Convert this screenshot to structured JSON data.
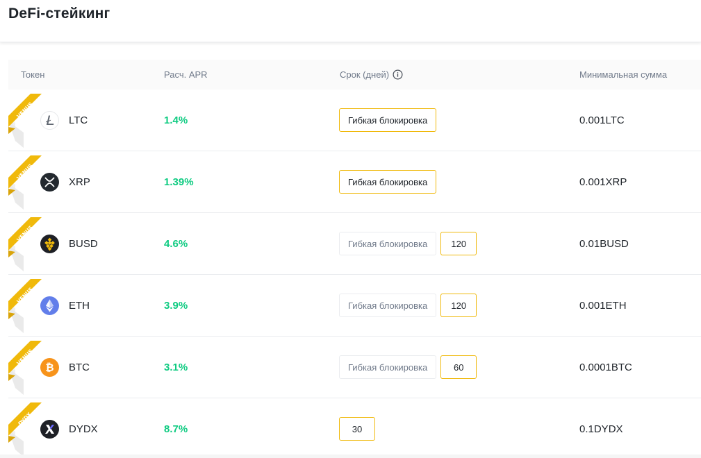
{
  "page": {
    "title": "DeFi-стейкинг"
  },
  "colors": {
    "accent": "#f0b90b",
    "apr_green": "#0ecb81",
    "muted": "#707a8a"
  },
  "table": {
    "headers": {
      "token": "Токен",
      "apr": "Расч. APR",
      "term": "Срок (дней)",
      "min_amount": "Минимальная сумма"
    },
    "rows": [
      {
        "ribbon": "VENUS",
        "icon": "litecoin-icon",
        "symbol": "LTC",
        "apr": "1.4%",
        "flexible": "Гибкая блокировка",
        "flexible_active": true,
        "days": [],
        "min_amount": "0.001LTC"
      },
      {
        "ribbon": "VENUS",
        "icon": "xrp-icon",
        "symbol": "XRP",
        "apr": "1.39%",
        "flexible": "Гибкая блокировка",
        "flexible_active": true,
        "days": [],
        "min_amount": "0.001XRP"
      },
      {
        "ribbon": "VENUS",
        "icon": "busd-icon",
        "symbol": "BUSD",
        "apr": "4.6%",
        "flexible": "Гибкая блокировка",
        "flexible_active": false,
        "days": [
          "120"
        ],
        "min_amount": "0.01BUSD"
      },
      {
        "ribbon": "VENUS",
        "icon": "ethereum-icon",
        "symbol": "ETH",
        "apr": "3.9%",
        "flexible": "Гибкая блокировка",
        "flexible_active": false,
        "days": [
          "120"
        ],
        "min_amount": "0.001ETH"
      },
      {
        "ribbon": "VENUS",
        "icon": "bitcoin-icon",
        "symbol": "BTC",
        "apr": "3.1%",
        "flexible": "Гибкая блокировка",
        "flexible_active": false,
        "days": [
          "60"
        ],
        "min_amount": "0.0001BTC"
      },
      {
        "ribbon": "DYDX",
        "icon": "dydx-icon",
        "symbol": "DYDX",
        "apr": "8.7%",
        "flexible": "",
        "flexible_active": false,
        "days": [
          "30"
        ],
        "min_amount": "0.1DYDX"
      }
    ]
  }
}
